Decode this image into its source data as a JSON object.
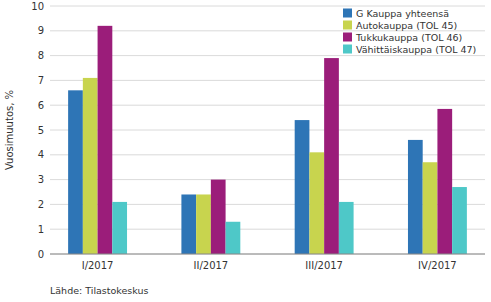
{
  "chart_data": {
    "type": "bar",
    "categories": [
      "I/2017",
      "II/2017",
      "III/2017",
      "IV/2017"
    ],
    "series": [
      {
        "name": "G Kauppa yhteensä",
        "color": "#2e75b6",
        "values": [
          6.6,
          2.4,
          5.4,
          4.6
        ]
      },
      {
        "name": "Autokauppa (TOL 45)",
        "color": "#c8d44e",
        "values": [
          7.1,
          2.4,
          4.1,
          3.7
        ]
      },
      {
        "name": "Tukkukauppa (TOL 46)",
        "color": "#9b1d7a",
        "values": [
          9.2,
          3.0,
          7.9,
          5.85
        ]
      },
      {
        "name": "Vähittäiskauppa (TOL 47)",
        "color": "#4ec8c8",
        "values": [
          2.1,
          1.3,
          2.1,
          2.7
        ]
      }
    ],
    "y_label": "Vuosimuutos, %",
    "annotations": [
      "Lähde: Tilastokeskus"
    ],
    "ylim": [
      0,
      10
    ],
    "yticks": [
      0,
      1,
      2,
      3,
      4,
      5,
      6,
      7,
      8,
      9,
      10
    ],
    "grid": true,
    "legend": "top-right"
  }
}
